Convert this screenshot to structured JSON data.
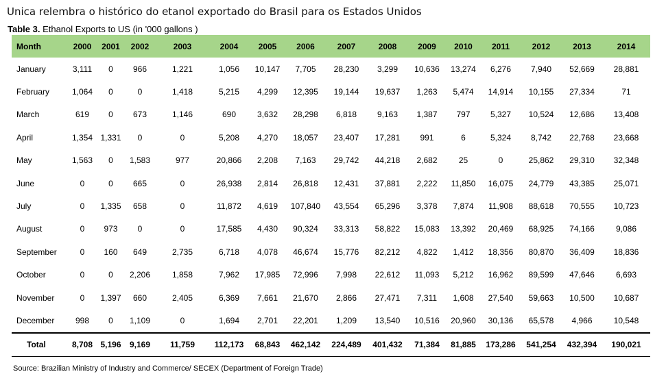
{
  "headline": "Unica relembra o histórico do etanol exportado do Brasil para os Estados Unidos",
  "caption": {
    "label": "Table 3.",
    "text": " Ethanol Exports to US (in '000 gallons )"
  },
  "table": {
    "month_header": "Month",
    "years": [
      "2000",
      "2001",
      "2002",
      "2003",
      "2004",
      "2005",
      "2006",
      "2007",
      "2008",
      "2009",
      "2010",
      "2011",
      "2012",
      "2013",
      "2014"
    ],
    "rows": [
      {
        "month": "January",
        "values": [
          "3,111",
          "0",
          "966",
          "1,221",
          "1,056",
          "10,147",
          "7,705",
          "28,230",
          "3,299",
          "10,636",
          "13,274",
          "6,276",
          "7,940",
          "52,669",
          "28,881"
        ]
      },
      {
        "month": "February",
        "values": [
          "1,064",
          "0",
          "0",
          "1,418",
          "5,215",
          "4,299",
          "12,395",
          "19,144",
          "19,637",
          "1,263",
          "5,474",
          "14,914",
          "10,155",
          "27,334",
          "71"
        ]
      },
      {
        "month": "March",
        "values": [
          "619",
          "0",
          "673",
          "1,146",
          "690",
          "3,632",
          "28,298",
          "6,818",
          "9,163",
          "1,387",
          "797",
          "5,327",
          "10,524",
          "12,686",
          "13,408"
        ]
      },
      {
        "month": "April",
        "values": [
          "1,354",
          "1,331",
          "0",
          "0",
          "5,208",
          "4,270",
          "18,057",
          "23,407",
          "17,281",
          "991",
          "6",
          "5,324",
          "8,742",
          "22,768",
          "23,668"
        ]
      },
      {
        "month": "May",
        "values": [
          "1,563",
          "0",
          "1,583",
          "977",
          "20,866",
          "2,208",
          "7,163",
          "29,742",
          "44,218",
          "2,682",
          "25",
          "0",
          "25,862",
          "29,310",
          "32,348"
        ]
      },
      {
        "month": "June",
        "values": [
          "0",
          "0",
          "665",
          "0",
          "26,938",
          "2,814",
          "26,818",
          "12,431",
          "37,881",
          "2,222",
          "11,850",
          "16,075",
          "24,779",
          "43,385",
          "25,071"
        ]
      },
      {
        "month": "July",
        "values": [
          "0",
          "1,335",
          "658",
          "0",
          "11,872",
          "4,619",
          "107,840",
          "43,554",
          "65,296",
          "3,378",
          "7,874",
          "11,908",
          "88,618",
          "70,555",
          "10,723"
        ]
      },
      {
        "month": "August",
        "values": [
          "0",
          "973",
          "0",
          "0",
          "17,585",
          "4,430",
          "90,324",
          "33,313",
          "58,822",
          "15,083",
          "13,392",
          "20,469",
          "68,925",
          "74,166",
          "9,086"
        ]
      },
      {
        "month": "September",
        "values": [
          "0",
          "160",
          "649",
          "2,735",
          "6,718",
          "4,078",
          "46,674",
          "15,776",
          "82,212",
          "4,822",
          "1,412",
          "18,356",
          "80,870",
          "36,409",
          "18,836"
        ]
      },
      {
        "month": "October",
        "values": [
          "0",
          "0",
          "2,206",
          "1,858",
          "7,962",
          "17,985",
          "72,996",
          "7,998",
          "22,612",
          "11,093",
          "5,212",
          "16,962",
          "89,599",
          "47,646",
          "6,693"
        ]
      },
      {
        "month": "November",
        "values": [
          "0",
          "1,397",
          "660",
          "2,405",
          "6,369",
          "7,661",
          "21,670",
          "2,866",
          "27,471",
          "7,311",
          "1,608",
          "27,540",
          "59,663",
          "10,500",
          "10,687"
        ]
      },
      {
        "month": "December",
        "values": [
          "998",
          "0",
          "1,109",
          "0",
          "1,694",
          "2,701",
          "22,201",
          "1,209",
          "13,540",
          "10,516",
          "20,960",
          "30,136",
          "65,578",
          "4,966",
          "10,548"
        ]
      }
    ],
    "total": {
      "label": "Total",
      "values": [
        "8,708",
        "5,196",
        "9,169",
        "11,759",
        "112,173",
        "68,843",
        "462,142",
        "224,489",
        "401,432",
        "71,384",
        "81,885",
        "173,286",
        "541,254",
        "432,394",
        "190,021"
      ]
    }
  },
  "source": "Source: Brazilian Ministry of Industry and Commerce/ SECEX (Department of Foreign Trade)",
  "colors": {
    "header_bg": "#a6d58a"
  }
}
